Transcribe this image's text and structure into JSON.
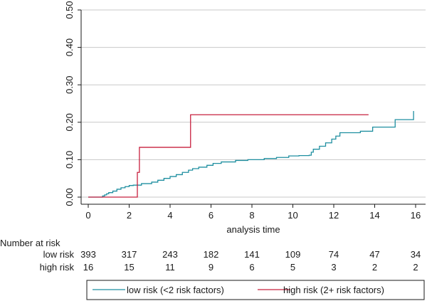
{
  "chart_data": {
    "type": "line",
    "xlabel": "analysis time",
    "ylabel": "",
    "xlim": [
      0,
      16
    ],
    "ylim": [
      0,
      0.5
    ],
    "x_ticks": [
      0,
      2,
      4,
      6,
      8,
      10,
      12,
      14,
      16
    ],
    "y_ticks": [
      "0.00",
      "0.10",
      "0.20",
      "0.30",
      "0.40",
      "0.50"
    ],
    "grid": "horizontal",
    "legend_position": "bottom",
    "series": [
      {
        "name": "low risk (<2 risk factors)",
        "color": "#1f8fa0",
        "step": true,
        "points": [
          [
            0,
            0
          ],
          [
            0.7,
            0.003
          ],
          [
            0.8,
            0.006
          ],
          [
            0.9,
            0.009
          ],
          [
            1.0,
            0.012
          ],
          [
            1.2,
            0.016
          ],
          [
            1.4,
            0.021
          ],
          [
            1.6,
            0.025
          ],
          [
            1.8,
            0.028
          ],
          [
            2.0,
            0.031
          ],
          [
            2.2,
            0.032
          ],
          [
            2.6,
            0.036
          ],
          [
            3.1,
            0.04
          ],
          [
            3.4,
            0.045
          ],
          [
            3.7,
            0.05
          ],
          [
            4.0,
            0.055
          ],
          [
            4.3,
            0.06
          ],
          [
            4.6,
            0.066
          ],
          [
            4.9,
            0.072
          ],
          [
            5.1,
            0.076
          ],
          [
            5.4,
            0.08
          ],
          [
            5.8,
            0.085
          ],
          [
            6.1,
            0.09
          ],
          [
            6.5,
            0.094
          ],
          [
            7.2,
            0.098
          ],
          [
            7.8,
            0.1
          ],
          [
            8.6,
            0.103
          ],
          [
            9.2,
            0.106
          ],
          [
            9.8,
            0.11
          ],
          [
            10.3,
            0.111
          ],
          [
            10.8,
            0.112
          ],
          [
            10.9,
            0.12
          ],
          [
            11.0,
            0.128
          ],
          [
            11.3,
            0.136
          ],
          [
            11.6,
            0.145
          ],
          [
            11.9,
            0.155
          ],
          [
            12.1,
            0.163
          ],
          [
            12.3,
            0.172
          ],
          [
            13.3,
            0.176
          ],
          [
            13.9,
            0.187
          ],
          [
            15.0,
            0.207
          ],
          [
            15.9,
            0.23
          ],
          [
            15.9,
            0.23
          ]
        ]
      },
      {
        "name": "high risk (2+ risk factors)",
        "color": "#c8203f",
        "step": true,
        "points": [
          [
            0,
            0
          ],
          [
            2.4,
            0.066
          ],
          [
            2.5,
            0.133
          ],
          [
            5.0,
            0.22
          ],
          [
            13.7,
            0.22
          ]
        ]
      }
    ]
  },
  "risk_table": {
    "header": "Number at risk",
    "times": [
      0,
      2,
      4,
      6,
      8,
      10,
      12,
      14,
      16
    ],
    "rows": [
      {
        "label": "low risk",
        "values": [
          "393",
          "317",
          "243",
          "182",
          "141",
          "109",
          "74",
          "47",
          "34"
        ]
      },
      {
        "label": "high risk",
        "values": [
          "16",
          "15",
          "11",
          "9",
          "6",
          "5",
          "3",
          "2",
          "2"
        ]
      }
    ]
  }
}
